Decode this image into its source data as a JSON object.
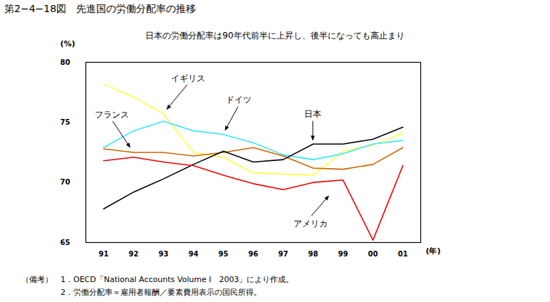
{
  "chart_data": {
    "type": "line",
    "title": "第2−4−18図　先進国の労働分配率の推移",
    "subtitle": "日本の労働分配率は90年代前半に上昇し、後半になっても高止まり",
    "xlabel": "(年)",
    "ylabel": "(%)",
    "categories": [
      "91",
      "92",
      "93",
      "94",
      "95",
      "96",
      "97",
      "98",
      "99",
      "00",
      "01"
    ],
    "series": [
      {
        "name": "イギリス",
        "color": "#ffff44",
        "values": [
          78.2,
          77.1,
          75.7,
          72.5,
          72.1,
          70.8,
          70.7,
          70.6,
          72.6,
          73.1,
          74.1
        ]
      },
      {
        "name": "ドイツ",
        "color": "#33e6ff",
        "values": [
          72.9,
          74.3,
          75.1,
          74.3,
          74.0,
          73.3,
          72.3,
          71.9,
          72.4,
          73.2,
          73.5
        ]
      },
      {
        "name": "フランス",
        "color": "#cc6600",
        "values": [
          72.8,
          72.5,
          72.5,
          72.2,
          72.5,
          72.9,
          72.2,
          71.2,
          71.1,
          71.5,
          72.9
        ]
      },
      {
        "name": "日本",
        "color": "#000000",
        "values": [
          67.8,
          69.2,
          70.3,
          71.5,
          72.6,
          71.7,
          71.9,
          73.2,
          73.2,
          73.6,
          74.6
        ]
      },
      {
        "name": "アメリカ",
        "color": "#ee0000",
        "values": [
          71.8,
          72.1,
          71.7,
          71.4,
          70.6,
          69.9,
          69.4,
          70.0,
          70.2,
          65.2,
          71.4
        ]
      }
    ],
    "ylim": [
      65,
      80
    ],
    "yticks": [
      65,
      70,
      75,
      80
    ],
    "grid": false,
    "notes": [
      "（備考）　1．OECD「National Accounts Volume Ⅰ　2003」により作成。",
      "2．労働分配率＝雇用者報酬／要素費用表示の国民所得。"
    ]
  }
}
